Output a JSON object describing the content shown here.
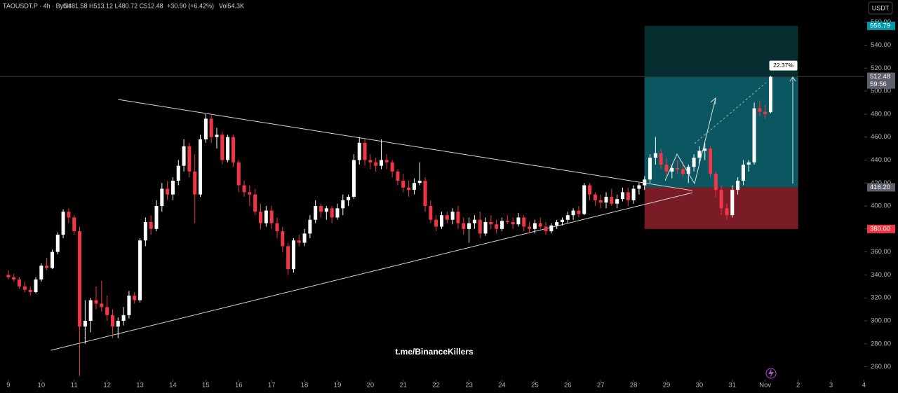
{
  "chart_data": {
    "type": "candlestick",
    "header": {
      "symbol": "TAOUSDT.P · 4h · Bybit",
      "ohlc": "O481.58 H513.12 L480.72 C512.48",
      "change": "+30.90 (+6.42%)",
      "volume": "Vol54.3K"
    },
    "currency": "USDT",
    "watermark": "t.me/BinanceKillers",
    "up_color": "#ffffff",
    "down_color": "#f23645",
    "x": [
      0,
      4,
      8,
      12,
      16,
      20,
      24,
      28,
      32,
      36,
      40,
      44,
      48,
      52,
      56,
      60,
      64,
      68,
      72,
      76,
      80,
      84,
      88,
      92,
      96,
      100,
      104,
      108,
      112,
      116,
      120,
      124,
      128,
      132,
      136,
      140,
      144,
      148,
      152,
      156,
      160,
      164,
      168,
      172,
      176,
      180,
      184,
      188,
      192,
      196,
      200,
      204,
      208,
      212,
      216,
      220,
      224,
      228,
      232,
      236,
      240,
      244,
      248,
      252,
      256,
      260,
      264,
      268,
      272,
      276,
      280,
      284,
      288,
      292,
      296,
      300,
      304,
      308,
      312,
      316,
      320,
      324,
      328,
      332,
      336,
      340,
      344,
      348,
      352,
      356,
      360,
      364,
      368,
      372,
      376,
      380,
      384,
      388,
      392,
      396,
      400,
      404,
      408,
      412,
      416,
      420,
      424,
      428,
      432,
      436,
      440,
      444,
      448,
      452,
      456,
      460,
      464,
      468,
      472,
      476,
      480,
      484,
      488,
      492,
      496,
      500,
      504,
      508,
      512,
      516,
      520,
      524,
      528,
      532,
      536,
      540,
      544,
      548,
      552,
      556
    ],
    "ohlc": [
      [
        340,
        344,
        336,
        338
      ],
      [
        338,
        341,
        334,
        336
      ],
      [
        336,
        338,
        328,
        330
      ],
      [
        330,
        334,
        325,
        327
      ],
      [
        327,
        330,
        322,
        325
      ],
      [
        325,
        338,
        324,
        336
      ],
      [
        336,
        350,
        334,
        348
      ],
      [
        348,
        355,
        344,
        346
      ],
      [
        346,
        362,
        345,
        360
      ],
      [
        360,
        377,
        358,
        375
      ],
      [
        375,
        397,
        372,
        395
      ],
      [
        395,
        398,
        385,
        390
      ],
      [
        390,
        392,
        375,
        378
      ],
      [
        378,
        382,
        252,
        295
      ],
      [
        295,
        318,
        280,
        300
      ],
      [
        300,
        320,
        290,
        318
      ],
      [
        318,
        330,
        310,
        315
      ],
      [
        315,
        335,
        308,
        312
      ],
      [
        312,
        322,
        300,
        305
      ],
      [
        305,
        310,
        285,
        295
      ],
      [
        295,
        303,
        285,
        300
      ],
      [
        300,
        312,
        296,
        305
      ],
      [
        305,
        326,
        302,
        322
      ],
      [
        322,
        325,
        315,
        318
      ],
      [
        318,
        372,
        316,
        370
      ],
      [
        370,
        390,
        365,
        386
      ],
      [
        386,
        392,
        375,
        380
      ],
      [
        380,
        405,
        378,
        400
      ],
      [
        400,
        420,
        395,
        415
      ],
      [
        415,
        422,
        405,
        410
      ],
      [
        410,
        425,
        405,
        422
      ],
      [
        422,
        440,
        418,
        435
      ],
      [
        435,
        458,
        430,
        452
      ],
      [
        452,
        455,
        425,
        430
      ],
      [
        430,
        445,
        385,
        410
      ],
      [
        410,
        462,
        408,
        458
      ],
      [
        458,
        480,
        455,
        476
      ],
      [
        476,
        480,
        455,
        460
      ],
      [
        460,
        468,
        450,
        462
      ],
      [
        462,
        465,
        436,
        440
      ],
      [
        440,
        462,
        438,
        460
      ],
      [
        460,
        462,
        434,
        438
      ],
      [
        438,
        440,
        412,
        418
      ],
      [
        418,
        422,
        408,
        412
      ],
      [
        412,
        418,
        400,
        410
      ],
      [
        410,
        415,
        392,
        395
      ],
      [
        395,
        402,
        380,
        385
      ],
      [
        385,
        400,
        382,
        396
      ],
      [
        396,
        400,
        380,
        385
      ],
      [
        385,
        390,
        372,
        378
      ],
      [
        378,
        382,
        360,
        365
      ],
      [
        365,
        368,
        340,
        345
      ],
      [
        345,
        372,
        342,
        370
      ],
      [
        370,
        375,
        365,
        368
      ],
      [
        368,
        380,
        365,
        376
      ],
      [
        376,
        392,
        372,
        388
      ],
      [
        388,
        405,
        385,
        400
      ],
      [
        400,
        402,
        390,
        395
      ],
      [
        395,
        400,
        388,
        398
      ],
      [
        398,
        400,
        385,
        390
      ],
      [
        390,
        402,
        388,
        398
      ],
      [
        398,
        410,
        392,
        405
      ],
      [
        405,
        410,
        400,
        408
      ],
      [
        408,
        445,
        406,
        440
      ],
      [
        440,
        460,
        436,
        455
      ],
      [
        455,
        458,
        435,
        440
      ],
      [
        440,
        445,
        432,
        438
      ],
      [
        438,
        442,
        430,
        435
      ],
      [
        435,
        458,
        432,
        440
      ],
      [
        440,
        445,
        432,
        438
      ],
      [
        438,
        440,
        425,
        430
      ],
      [
        430,
        432,
        418,
        422
      ],
      [
        422,
        428,
        412,
        416
      ],
      [
        416,
        422,
        408,
        414
      ],
      [
        414,
        424,
        410,
        420
      ],
      [
        420,
        438,
        418,
        422
      ],
      [
        422,
        425,
        395,
        400
      ],
      [
        400,
        405,
        385,
        388
      ],
      [
        388,
        392,
        378,
        382
      ],
      [
        382,
        395,
        380,
        392
      ],
      [
        392,
        395,
        385,
        388
      ],
      [
        388,
        398,
        384,
        395
      ],
      [
        395,
        400,
        380,
        385
      ],
      [
        385,
        390,
        375,
        380
      ],
      [
        380,
        390,
        368,
        385
      ],
      [
        385,
        392,
        380,
        388
      ],
      [
        388,
        395,
        372,
        376
      ],
      [
        376,
        390,
        374,
        386
      ],
      [
        386,
        392,
        380,
        384
      ],
      [
        384,
        388,
        376,
        380
      ],
      [
        380,
        390,
        378,
        387
      ],
      [
        387,
        392,
        384,
        386
      ],
      [
        386,
        390,
        380,
        384
      ],
      [
        384,
        394,
        382,
        390
      ],
      [
        390,
        392,
        378,
        382
      ],
      [
        382,
        386,
        376,
        380
      ],
      [
        380,
        388,
        376,
        385
      ],
      [
        385,
        390,
        380,
        382
      ],
      [
        382,
        386,
        375,
        378
      ],
      [
        378,
        385,
        376,
        383
      ],
      [
        383,
        388,
        380,
        386
      ],
      [
        386,
        390,
        383,
        388
      ],
      [
        388,
        395,
        385,
        392
      ],
      [
        392,
        398,
        388,
        396
      ],
      [
        396,
        400,
        390,
        393
      ],
      [
        393,
        420,
        392,
        418
      ],
      [
        418,
        420,
        405,
        410
      ],
      [
        410,
        412,
        400,
        405
      ],
      [
        405,
        410,
        398,
        403
      ],
      [
        403,
        412,
        398,
        408
      ],
      [
        408,
        415,
        400,
        402
      ],
      [
        402,
        410,
        398,
        406
      ],
      [
        406,
        416,
        404,
        412
      ],
      [
        412,
        416,
        400,
        405
      ],
      [
        405,
        418,
        402,
        415
      ],
      [
        415,
        420,
        410,
        418
      ],
      [
        418,
        426,
        414,
        423
      ],
      [
        423,
        445,
        420,
        442
      ],
      [
        442,
        460,
        436,
        446
      ],
      [
        446,
        450,
        432,
        436
      ],
      [
        436,
        442,
        426,
        430
      ],
      [
        430,
        436,
        424,
        433
      ],
      [
        433,
        440,
        428,
        432
      ],
      [
        432,
        438,
        425,
        428
      ],
      [
        428,
        436,
        420,
        434
      ],
      [
        434,
        445,
        430,
        442
      ],
      [
        442,
        452,
        436,
        448
      ],
      [
        448,
        455,
        440,
        450
      ],
      [
        450,
        452,
        425,
        428
      ],
      [
        428,
        430,
        408,
        414
      ],
      [
        414,
        418,
        392,
        398
      ],
      [
        398,
        402,
        388,
        392
      ],
      [
        392,
        418,
        390,
        414
      ],
      [
        414,
        425,
        410,
        422
      ],
      [
        422,
        440,
        418,
        436
      ],
      [
        436,
        440,
        430,
        438
      ],
      [
        438,
        490,
        436,
        485
      ],
      [
        485,
        492,
        478,
        482
      ],
      [
        482,
        488,
        476,
        480
      ],
      [
        481.58,
        513.12,
        480.72,
        512.48
      ]
    ],
    "xlim": [
      -6.1,
      624.3
    ],
    "xticks": [
      {
        "value": 0,
        "label": "9"
      },
      {
        "value": 24,
        "label": "10"
      },
      {
        "value": 48,
        "label": "11"
      },
      {
        "value": 72,
        "label": "12"
      },
      {
        "value": 96,
        "label": "13"
      },
      {
        "value": 120,
        "label": "14"
      },
      {
        "value": 144,
        "label": "15"
      },
      {
        "value": 168,
        "label": "16"
      },
      {
        "value": 192,
        "label": "17"
      },
      {
        "value": 216,
        "label": "18"
      },
      {
        "value": 240,
        "label": "19"
      },
      {
        "value": 264,
        "label": "20"
      },
      {
        "value": 288,
        "label": "21"
      },
      {
        "value": 312,
        "label": "22"
      },
      {
        "value": 336,
        "label": "23"
      },
      {
        "value": 360,
        "label": "24"
      },
      {
        "value": 384,
        "label": "25"
      },
      {
        "value": 408,
        "label": "26"
      },
      {
        "value": 432,
        "label": "27"
      },
      {
        "value": 456,
        "label": "28"
      },
      {
        "value": 480,
        "label": "29"
      },
      {
        "value": 504,
        "label": "30"
      },
      {
        "value": 528,
        "label": "31"
      },
      {
        "value": 552,
        "label": "Nov"
      },
      {
        "value": 576,
        "label": "2"
      },
      {
        "value": 600,
        "label": "3"
      },
      {
        "value": 624,
        "label": "4"
      }
    ],
    "ylim": [
      249.4,
      579.3
    ],
    "yticks": [
      {
        "value": 260,
        "label": "260.00"
      },
      {
        "value": 280,
        "label": "280.00"
      },
      {
        "value": 300,
        "label": "300.00"
      },
      {
        "value": 320,
        "label": "320.00"
      },
      {
        "value": 340,
        "label": "340.00"
      },
      {
        "value": 360,
        "label": "360.00"
      },
      {
        "value": 380,
        "label": "380.00"
      },
      {
        "value": 400,
        "label": "400.00"
      },
      {
        "value": 420,
        "label": "420.00"
      },
      {
        "value": 440,
        "label": "440.00"
      },
      {
        "value": 460,
        "label": "460.00"
      },
      {
        "value": 480,
        "label": "480.00"
      },
      {
        "value": 500,
        "label": "500.00"
      },
      {
        "value": 520,
        "label": "520.00"
      },
      {
        "value": 540,
        "label": "540.00"
      },
      {
        "value": 560,
        "label": "560.00"
      }
    ],
    "trendlines": [
      {
        "x": [
          80,
          499
        ],
        "y": [
          492.7,
          413.4
        ]
      },
      {
        "x": [
          31,
          499
        ],
        "y": [
          274.4,
          411.6
        ]
      }
    ],
    "position": {
      "x": [
        464,
        576
      ],
      "target": 556.79,
      "entry": {
        "value": 416.2,
        "label": "416.20"
      },
      "stop": {
        "value": 380,
        "label": "380.00"
      },
      "last": 512.48,
      "countdown": "59:56",
      "gain": "22.37%"
    }
  }
}
